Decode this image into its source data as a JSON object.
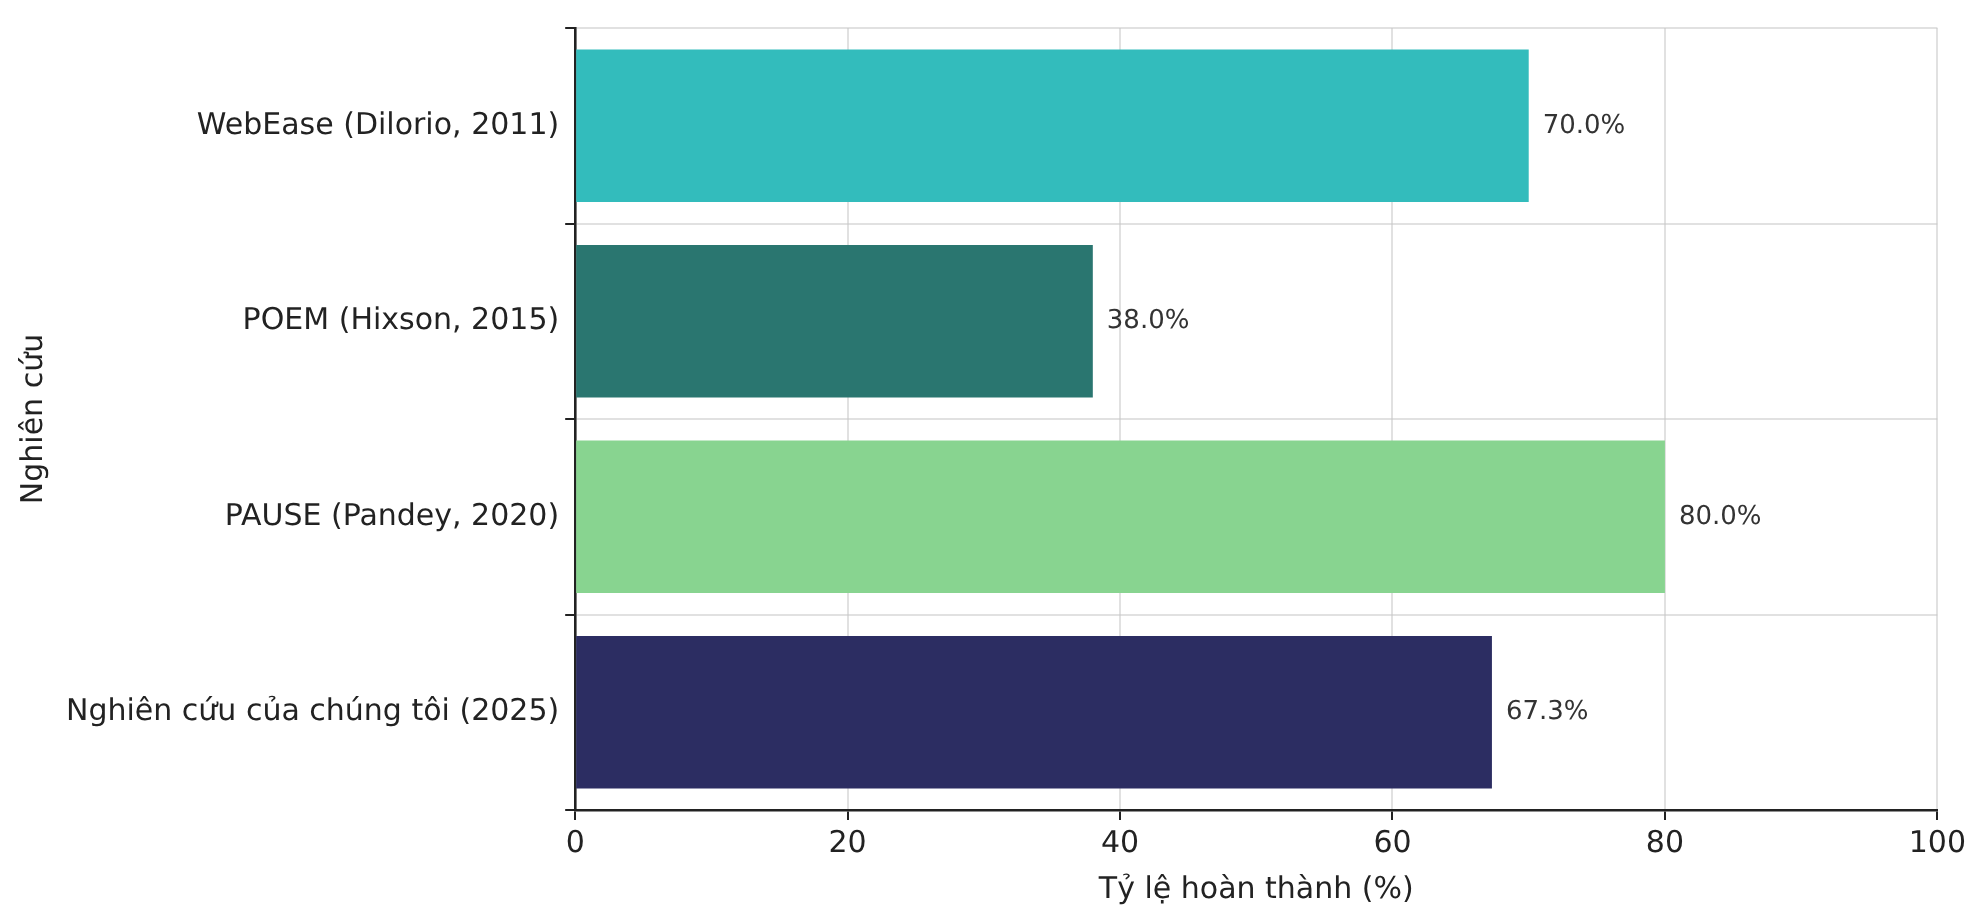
{
  "chart_data": {
    "type": "bar",
    "orientation": "horizontal",
    "categories": [
      "WebEase (Dilorio, 2011)",
      "POEM (Hixson, 2015)",
      "PAUSE (Pandey, 2020)",
      "Nghiên cứu của chúng tôi (2025)"
    ],
    "values": [
      70.0,
      38.0,
      80.0,
      67.3
    ],
    "colors": [
      "#33bcbc",
      "#2a7670",
      "#88d490",
      "#2c2d62"
    ],
    "value_labels": [
      "70.0%",
      "38.0%",
      "80.0%",
      "67.3%"
    ],
    "xlabel": "Tỷ lệ hoàn thành (%)",
    "ylabel": "Nghiên cứu",
    "xlim": [
      0,
      100
    ],
    "xticks": [
      0,
      20,
      40,
      60,
      80,
      100
    ],
    "grid": true,
    "legend": false
  }
}
